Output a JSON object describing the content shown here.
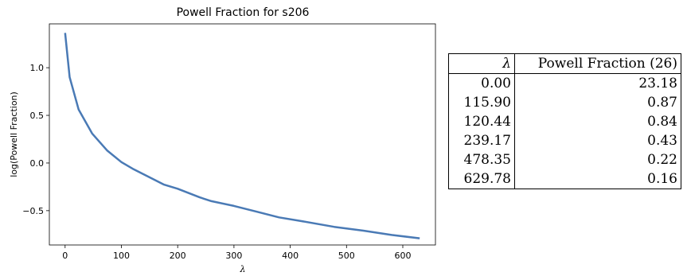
{
  "chart_data": [
    {
      "type": "line",
      "title": "Powell Fraction for s206",
      "xlabel": "λ",
      "ylabel": "log(Powell Fraction)",
      "xlim": [
        -28,
        658
      ],
      "ylim": [
        -0.86,
        1.46
      ],
      "xticks": [
        0,
        100,
        200,
        300,
        400,
        500,
        600
      ],
      "yticks": [
        -0.5,
        0.0,
        0.5,
        1.0
      ],
      "xtick_labels": [
        "0",
        "100",
        "200",
        "300",
        "400",
        "500",
        "600"
      ],
      "ytick_labels": [
        "−0.5",
        "0.0",
        "0.5",
        "1.0"
      ],
      "grid": false,
      "line_color": "#4a7ab5",
      "series": [
        {
          "x": [
            0,
            8,
            24,
            48,
            75,
            100,
            120,
            150,
            175,
            200,
            239,
            260,
            300,
            340,
            380,
            420,
            478,
            530,
            580,
            630
          ],
          "y": [
            1.365,
            0.9,
            0.56,
            0.31,
            0.13,
            0.01,
            -0.06,
            -0.15,
            -0.225,
            -0.27,
            -0.36,
            -0.4,
            -0.45,
            -0.51,
            -0.57,
            -0.61,
            -0.67,
            -0.71,
            -0.755,
            -0.79
          ]
        }
      ]
    },
    {
      "type": "table",
      "columns": [
        "λ",
        "Powell Fraction (26)"
      ],
      "rows": [
        [
          "0.00",
          "23.18"
        ],
        [
          "115.90",
          "0.87"
        ],
        [
          "120.44",
          "0.84"
        ],
        [
          "239.17",
          "0.43"
        ],
        [
          "478.35",
          "0.22"
        ],
        [
          "629.78",
          "0.16"
        ]
      ]
    }
  ]
}
